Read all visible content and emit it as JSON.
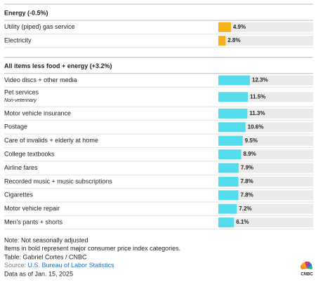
{
  "sections": [
    {
      "title": "Energy (-0.5%)",
      "title_color": "#e8a000",
      "bar_color": "#f5b21b",
      "rows": [
        {
          "label": "Utility (piped) gas service",
          "value": 4.9,
          "value_label": "4.9%"
        },
        {
          "label": "Electricity",
          "value": 2.8,
          "value_label": "2.8%"
        }
      ]
    },
    {
      "title": "All items less food + energy (+3.2%)",
      "title_color": "#1aa6b7",
      "bar_color": "#52dcec",
      "rows": [
        {
          "label": "Video discs + other media",
          "value": 12.3,
          "value_label": "12.3%"
        },
        {
          "label": "Pet services",
          "sublabel": "Non-veterinary",
          "value": 11.5,
          "value_label": "11.5%"
        },
        {
          "label": "Motor vehicle insurance",
          "value": 11.3,
          "value_label": "11.3%"
        },
        {
          "label": "Postage",
          "value": 10.6,
          "value_label": "10.6%"
        },
        {
          "label": "Care of invalids + elderly at home",
          "value": 9.5,
          "value_label": "9.5%"
        },
        {
          "label": "College textbooks",
          "value": 8.9,
          "value_label": "8.9%"
        },
        {
          "label": "Airline fares",
          "value": 7.9,
          "value_label": "7.9%"
        },
        {
          "label": "Recorded music + music subscriptions",
          "value": 7.8,
          "value_label": "7.8%"
        },
        {
          "label": "Cigarettes",
          "value": 7.8,
          "value_label": "7.8%"
        },
        {
          "label": "Motor vehicle repair",
          "value": 7.2,
          "value_label": "7.2%"
        },
        {
          "label": "Men's pants + shorts",
          "value": 6.1,
          "value_label": "6.1%"
        }
      ]
    }
  ],
  "xlim": [
    0,
    37
  ],
  "notes": [
    "Note: Not seasonally adjusted",
    "Items in bold represent major consumer price index categories."
  ],
  "credit": "Table: Gabriel Cortes / CNBC",
  "source": {
    "prefix": "Source: ",
    "link": "U.S. Bureau of Labor Statistics"
  },
  "date": "Data as of Jan. 15, 2025",
  "logo": "CNBC"
}
